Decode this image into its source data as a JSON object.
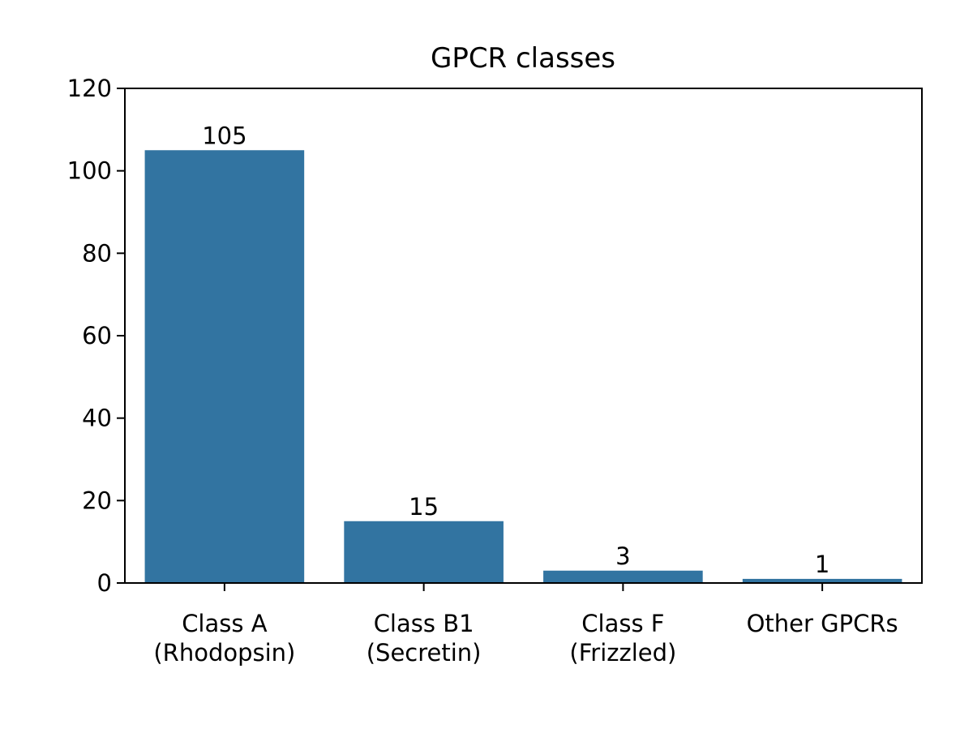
{
  "chart_data": {
    "type": "bar",
    "title": "GPCR classes",
    "xlabel": "",
    "ylabel": "",
    "categories": [
      [
        "Class A",
        "(Rhodopsin)"
      ],
      [
        "Class B1",
        "(Secretin)"
      ],
      [
        "Class F",
        "(Frizzled)"
      ],
      [
        "Other GPCRs"
      ]
    ],
    "values": [
      105,
      15,
      3,
      1
    ],
    "data_labels": [
      "105",
      "15",
      "3",
      "1"
    ],
    "ylim": [
      0,
      120
    ],
    "yticks": [
      0,
      20,
      40,
      60,
      80,
      100,
      120
    ],
    "grid": false,
    "legend": "none",
    "bar_color": "#3274a1"
  }
}
